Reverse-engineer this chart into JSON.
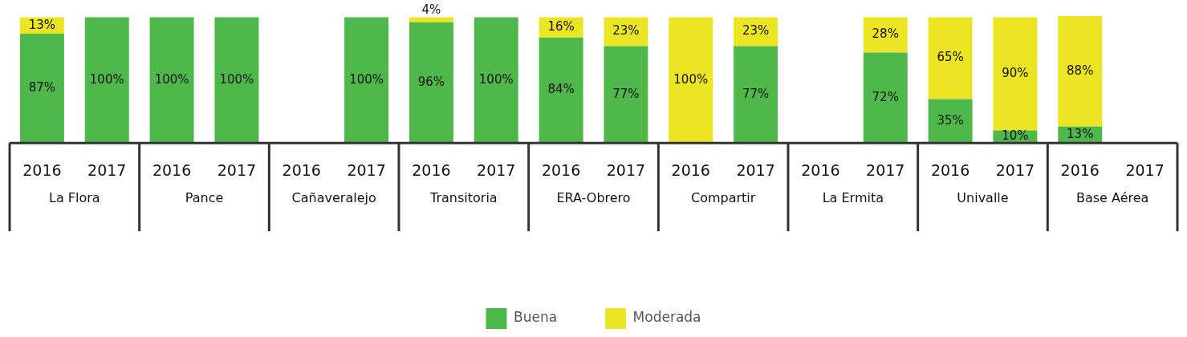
{
  "chart_data": {
    "type": "bar",
    "stacked": true,
    "categories": [
      "2016",
      "2017",
      "2016",
      "2017",
      "2016",
      "2017",
      "2016",
      "2017",
      "2016",
      "2017",
      "2016",
      "2017",
      "2016",
      "2017",
      "2016",
      "2017",
      "2016",
      "2017"
    ],
    "series": [
      {
        "name": "Buena",
        "color": "#4fb84a",
        "values": [
          87,
          100,
          100,
          100,
          null,
          100,
          96,
          100,
          84,
          77,
          null,
          77,
          null,
          72,
          35,
          10,
          13,
          null
        ],
        "value_labels": [
          "87%",
          "100%",
          "100%",
          "100%",
          null,
          "100%",
          "96%",
          "100%",
          "84%",
          "77%",
          null,
          "77%",
          null,
          "72%",
          "35%",
          "10%",
          "13%",
          null
        ]
      },
      {
        "name": "Moderada",
        "color": "#ebe524",
        "values": [
          13,
          null,
          null,
          null,
          null,
          null,
          4,
          null,
          16,
          23,
          100,
          23,
          null,
          28,
          65,
          90,
          88,
          null
        ],
        "value_labels": [
          "13%",
          null,
          null,
          null,
          null,
          null,
          "4%",
          null,
          "16%",
          "23%",
          "100%",
          "23%",
          null,
          "28%",
          "65%",
          "90%",
          "88%",
          null
        ]
      }
    ],
    "annotations": [
      "La Flora",
      "Pance",
      "Cañaveralejo",
      "Transitoria",
      "ERA-Obrero",
      "Compartir",
      "La Ermita",
      "Univalle",
      "Base Aérea"
    ],
    "ylim": [
      0,
      101
    ],
    "tick_labels": "x",
    "grid": false,
    "legend": "bottom"
  }
}
